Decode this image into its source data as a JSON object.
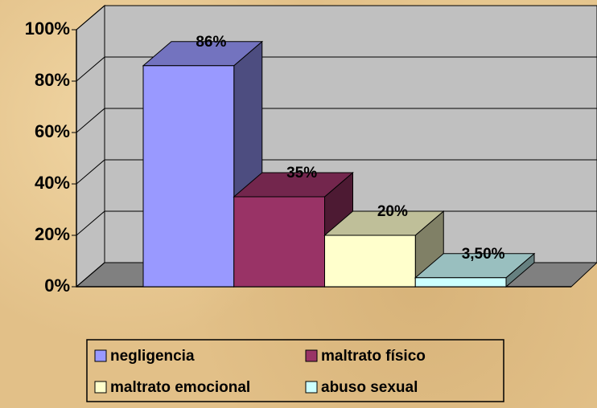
{
  "chart_data": {
    "type": "bar3d",
    "series": [
      {
        "name": "negligencia",
        "color": "#9999ff",
        "values": [
          86
        ],
        "value_labels": [
          "86%"
        ]
      },
      {
        "name": "maltrato físico",
        "color": "#993366",
        "values": [
          35
        ],
        "value_labels": [
          "35%"
        ]
      },
      {
        "name": "maltrato emocional",
        "color": "#ffffcc",
        "values": [
          20
        ],
        "value_labels": [
          "20%"
        ]
      },
      {
        "name": "abuso sexual",
        "color": "#ccffff",
        "values": [
          3.5
        ],
        "value_labels": [
          "3,50%"
        ]
      }
    ],
    "ylim": [
      0,
      100
    ],
    "yticks": [
      {
        "value": 0,
        "label": "0%"
      },
      {
        "value": 20,
        "label": "20%"
      },
      {
        "value": 40,
        "label": "40%"
      },
      {
        "value": 60,
        "label": "60%"
      },
      {
        "value": 80,
        "label": "80%"
      },
      {
        "value": 100,
        "label": "100%"
      }
    ],
    "grid": true,
    "legend": "bottom"
  }
}
